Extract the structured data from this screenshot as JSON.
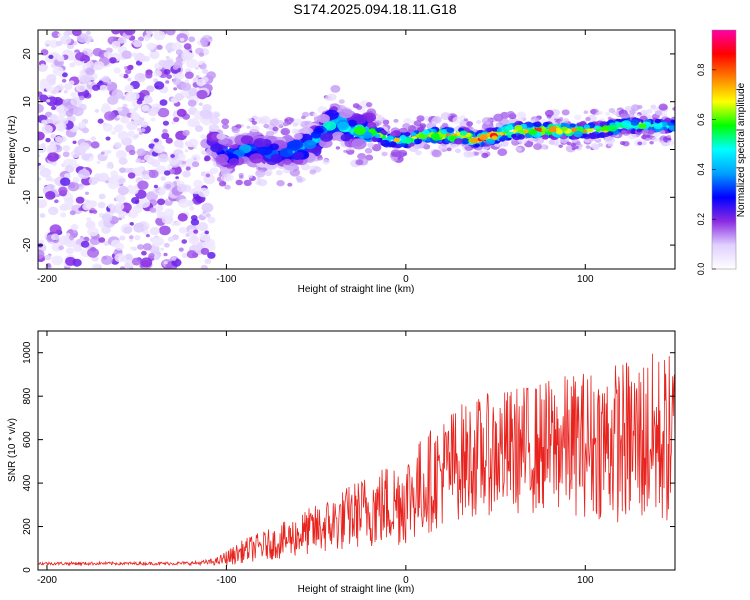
{
  "title": "S174.2025.094.18.11.G18",
  "chart_data": [
    {
      "type": "heatmap",
      "xlabel": "Height of straight line (km)",
      "ylabel": "Frequency (Hz)",
      "xlim": [
        -205,
        150
      ],
      "ylim": [
        -25,
        25
      ],
      "xticks": [
        -200,
        -100,
        0,
        100
      ],
      "yticks": [
        -20,
        -10,
        0,
        10,
        20
      ],
      "colorbar": {
        "label": "Normalized spectral amplitude",
        "range": [
          0,
          0.96
        ],
        "ticks": [
          0.0,
          0.2,
          0.4,
          0.6,
          0.8
        ],
        "colormap": [
          "#ffffff",
          "#e0d0ff",
          "#8a2be2",
          "#0000ff",
          "#00a0ff",
          "#00ffff",
          "#00ff00",
          "#ffff00",
          "#ff8000",
          "#ff0000",
          "#ff00aa"
        ]
      },
      "noise_region": {
        "x_range": [
          -205,
          -108
        ],
        "y_range": [
          -25,
          25
        ]
      },
      "ridge": {
        "x": [
          -108,
          -100,
          -90,
          -80,
          -70,
          -60,
          -50,
          -40,
          -30,
          -20,
          -10,
          0,
          10,
          20,
          30,
          40,
          50,
          60,
          70,
          80,
          90,
          100,
          110,
          120,
          130,
          140,
          150
        ],
        "freq": [
          2,
          -1,
          0,
          0,
          -1,
          0,
          2,
          6,
          4,
          4,
          2,
          2,
          3,
          3,
          3,
          2,
          3,
          4,
          4,
          4,
          4,
          4,
          4,
          5,
          5,
          5,
          5
        ],
        "amplitude": [
          0.3,
          0.4,
          0.4,
          0.4,
          0.4,
          0.45,
          0.5,
          0.5,
          0.55,
          0.6,
          0.7,
          0.75,
          0.8,
          0.85,
          0.88,
          0.9,
          0.9,
          0.9,
          0.92,
          0.9,
          0.85,
          0.8,
          0.75,
          0.7,
          0.65,
          0.6,
          0.55
        ]
      }
    },
    {
      "type": "line",
      "xlabel": "Height of straight line (km)",
      "ylabel": "SNR (10 * v/v)",
      "xlim": [
        -205,
        150
      ],
      "ylim": [
        0,
        1100
      ],
      "xticks": [
        -200,
        -100,
        0,
        100
      ],
      "yticks": [
        0,
        200,
        400,
        600,
        800,
        1000
      ],
      "color": "#e8231e",
      "series": [
        {
          "x": [
            -205,
            -190,
            -175,
            -160,
            -145,
            -130,
            -115,
            -105,
            -100,
            -95,
            -90,
            -85,
            -80,
            -75,
            -70,
            -65,
            -60,
            -55,
            -50,
            -45,
            -40,
            -35,
            -30,
            -25,
            -20,
            -15,
            -10,
            -5,
            0,
            5,
            10,
            15,
            20,
            25,
            30,
            35,
            40,
            45,
            50,
            55,
            60,
            65,
            70,
            75,
            80,
            85,
            90,
            95,
            100,
            105,
            110,
            115,
            120,
            125,
            130,
            135,
            140,
            145,
            150
          ],
          "mean": [
            30,
            30,
            30,
            30,
            30,
            30,
            32,
            40,
            55,
            70,
            90,
            100,
            110,
            120,
            130,
            145,
            160,
            175,
            185,
            200,
            215,
            230,
            250,
            265,
            280,
            290,
            300,
            310,
            330,
            360,
            390,
            420,
            450,
            480,
            500,
            510,
            520,
            530,
            540,
            545,
            550,
            555,
            560,
            565,
            570,
            575,
            580,
            580,
            585,
            585,
            590,
            590,
            590,
            595,
            595,
            600,
            600,
            600,
            600
          ],
          "spread": [
            8,
            8,
            8,
            8,
            8,
            8,
            10,
            20,
            40,
            50,
            60,
            70,
            75,
            80,
            90,
            100,
            110,
            120,
            130,
            140,
            150,
            160,
            170,
            180,
            200,
            210,
            220,
            230,
            240,
            250,
            260,
            270,
            280,
            290,
            300,
            300,
            310,
            310,
            320,
            320,
            330,
            330,
            340,
            340,
            350,
            350,
            360,
            370,
            380,
            390,
            400,
            410,
            420,
            430,
            440,
            450,
            450,
            450,
            450
          ]
        }
      ]
    }
  ]
}
